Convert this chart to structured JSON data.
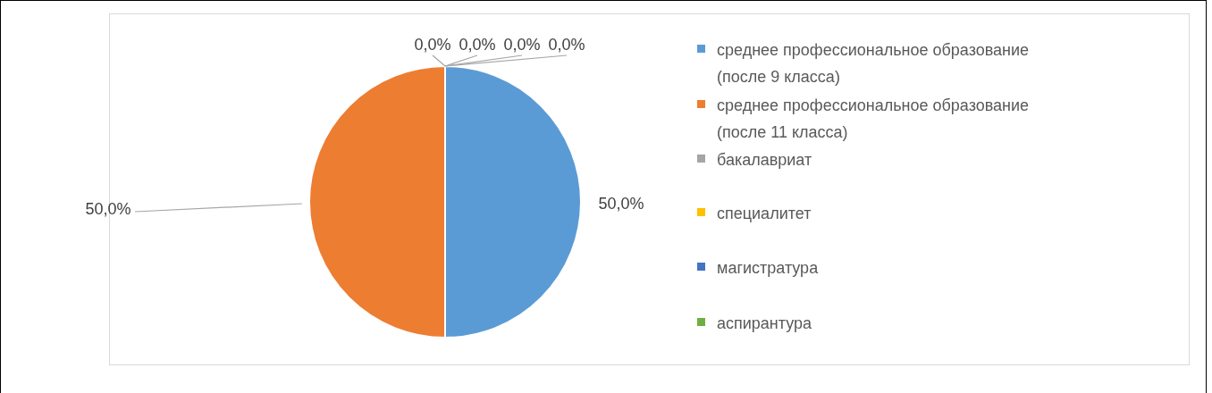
{
  "chart_data": {
    "type": "pie",
    "categories": [
      "среднее профессиональное образование (после 9 класса)",
      "среднее профессиональное образование (после 11 класса)",
      "бакалавриат",
      "специалитет",
      "магистратура",
      "аспирантура"
    ],
    "values": [
      50,
      50,
      0,
      0,
      0,
      0
    ],
    "colors": [
      "#5b9bd5",
      "#ed7d31",
      "#a5a5a5",
      "#ffc000",
      "#4472c4",
      "#70ad47"
    ],
    "value_labels": [
      "50,0%",
      "50,0%",
      "0,0%",
      "0,0%",
      "0,0%",
      "0,0%"
    ],
    "legend": "right"
  }
}
